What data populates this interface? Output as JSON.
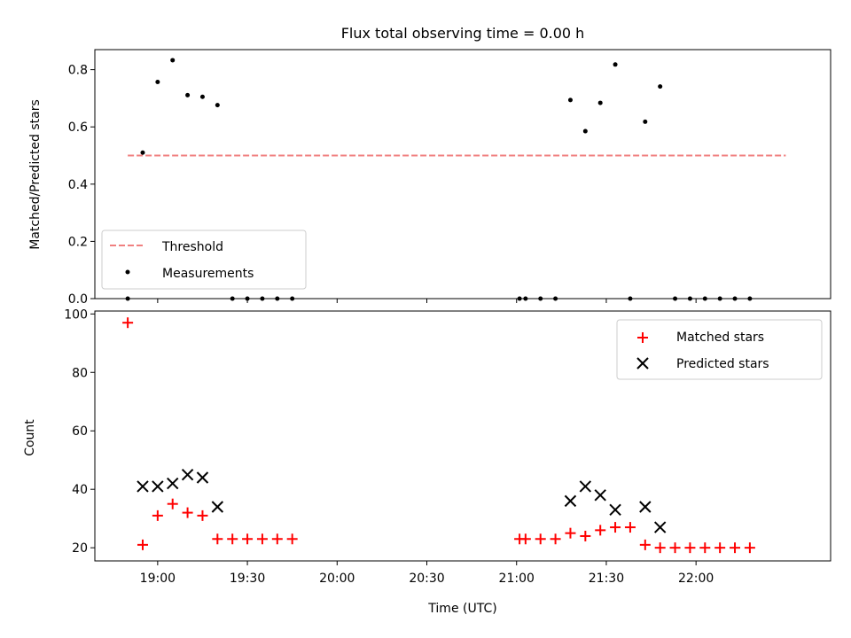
{
  "chart_data": [
    {
      "type": "scatter",
      "title": "Flux total observing time = 0.00 h",
      "xlabel": "",
      "ylabel": "Matched/Predicted stars",
      "xlim": [
        "18:39",
        "22:45"
      ],
      "ylim": [
        0,
        0.87
      ],
      "yticks": [
        0.0,
        0.2,
        0.4,
        0.6,
        0.8
      ],
      "ytick_labels": [
        "0.0",
        "0.2",
        "0.4",
        "0.6",
        "0.8"
      ],
      "legend_position": "lower-left",
      "threshold": {
        "name": "Threshold",
        "value": 0.5,
        "x_range": [
          "18:50",
          "22:30"
        ],
        "color": "#f08080"
      },
      "series": [
        {
          "name": "Measurements",
          "color": "#000000",
          "x": [
            "18:50",
            "18:55",
            "19:00",
            "19:05",
            "19:10",
            "19:15",
            "19:20",
            "19:25",
            "19:30",
            "19:35",
            "19:40",
            "19:45",
            "21:01",
            "21:03",
            "21:08",
            "21:13",
            "21:18",
            "21:23",
            "21:28",
            "21:33",
            "21:38",
            "21:43",
            "21:48",
            "21:53",
            "21:58",
            "22:03",
            "22:08",
            "22:13",
            "22:18"
          ],
          "values": [
            0.0,
            0.51,
            0.757,
            0.833,
            0.711,
            0.705,
            0.676,
            0.0,
            0.0,
            0.0,
            0.0,
            0.0,
            0.0,
            0.0,
            0.0,
            0.0,
            0.694,
            0.585,
            0.684,
            0.818,
            0.0,
            0.618,
            0.741,
            0.0,
            0.0,
            0.0,
            0.0,
            0.0,
            0.0
          ]
        }
      ]
    },
    {
      "type": "scatter",
      "title": "",
      "xlabel": "Time (UTC)",
      "ylabel": "Count",
      "xlim": [
        "18:39",
        "22:45"
      ],
      "ylim": [
        15.5,
        101
      ],
      "yticks": [
        20,
        40,
        60,
        80,
        100
      ],
      "ytick_labels": [
        "20",
        "40",
        "60",
        "80",
        "100"
      ],
      "xticks": [
        "19:00",
        "19:30",
        "20:00",
        "20:30",
        "21:00",
        "21:30",
        "22:00"
      ],
      "xtick_labels": [
        "19:00",
        "19:30",
        "20:00",
        "20:30",
        "21:00",
        "21:30",
        "22:00"
      ],
      "legend_position": "upper-right",
      "series": [
        {
          "name": "Matched stars",
          "marker": "plus",
          "color": "#ff0000",
          "x": [
            "18:50",
            "18:55",
            "19:00",
            "19:05",
            "19:10",
            "19:15",
            "19:20",
            "19:25",
            "19:30",
            "19:35",
            "19:40",
            "19:45",
            "21:01",
            "21:03",
            "21:08",
            "21:13",
            "21:18",
            "21:23",
            "21:28",
            "21:33",
            "21:38",
            "21:43",
            "21:48",
            "21:53",
            "21:58",
            "22:03",
            "22:08",
            "22:13",
            "22:18"
          ],
          "values": [
            97,
            21,
            31,
            35,
            32,
            31,
            23,
            23,
            23,
            23,
            23,
            23,
            23,
            23,
            23,
            23,
            25,
            24,
            26,
            27,
            27,
            21,
            20,
            20,
            20,
            20,
            20,
            20,
            20
          ]
        },
        {
          "name": "Predicted stars",
          "marker": "x",
          "color": "#000000",
          "x": [
            "18:55",
            "19:00",
            "19:05",
            "19:10",
            "19:15",
            "19:20",
            "21:18",
            "21:23",
            "21:28",
            "21:33",
            "21:43",
            "21:48"
          ],
          "values": [
            41,
            41,
            42,
            45,
            44,
            34,
            36,
            41,
            38,
            33,
            34,
            27
          ]
        }
      ]
    }
  ]
}
